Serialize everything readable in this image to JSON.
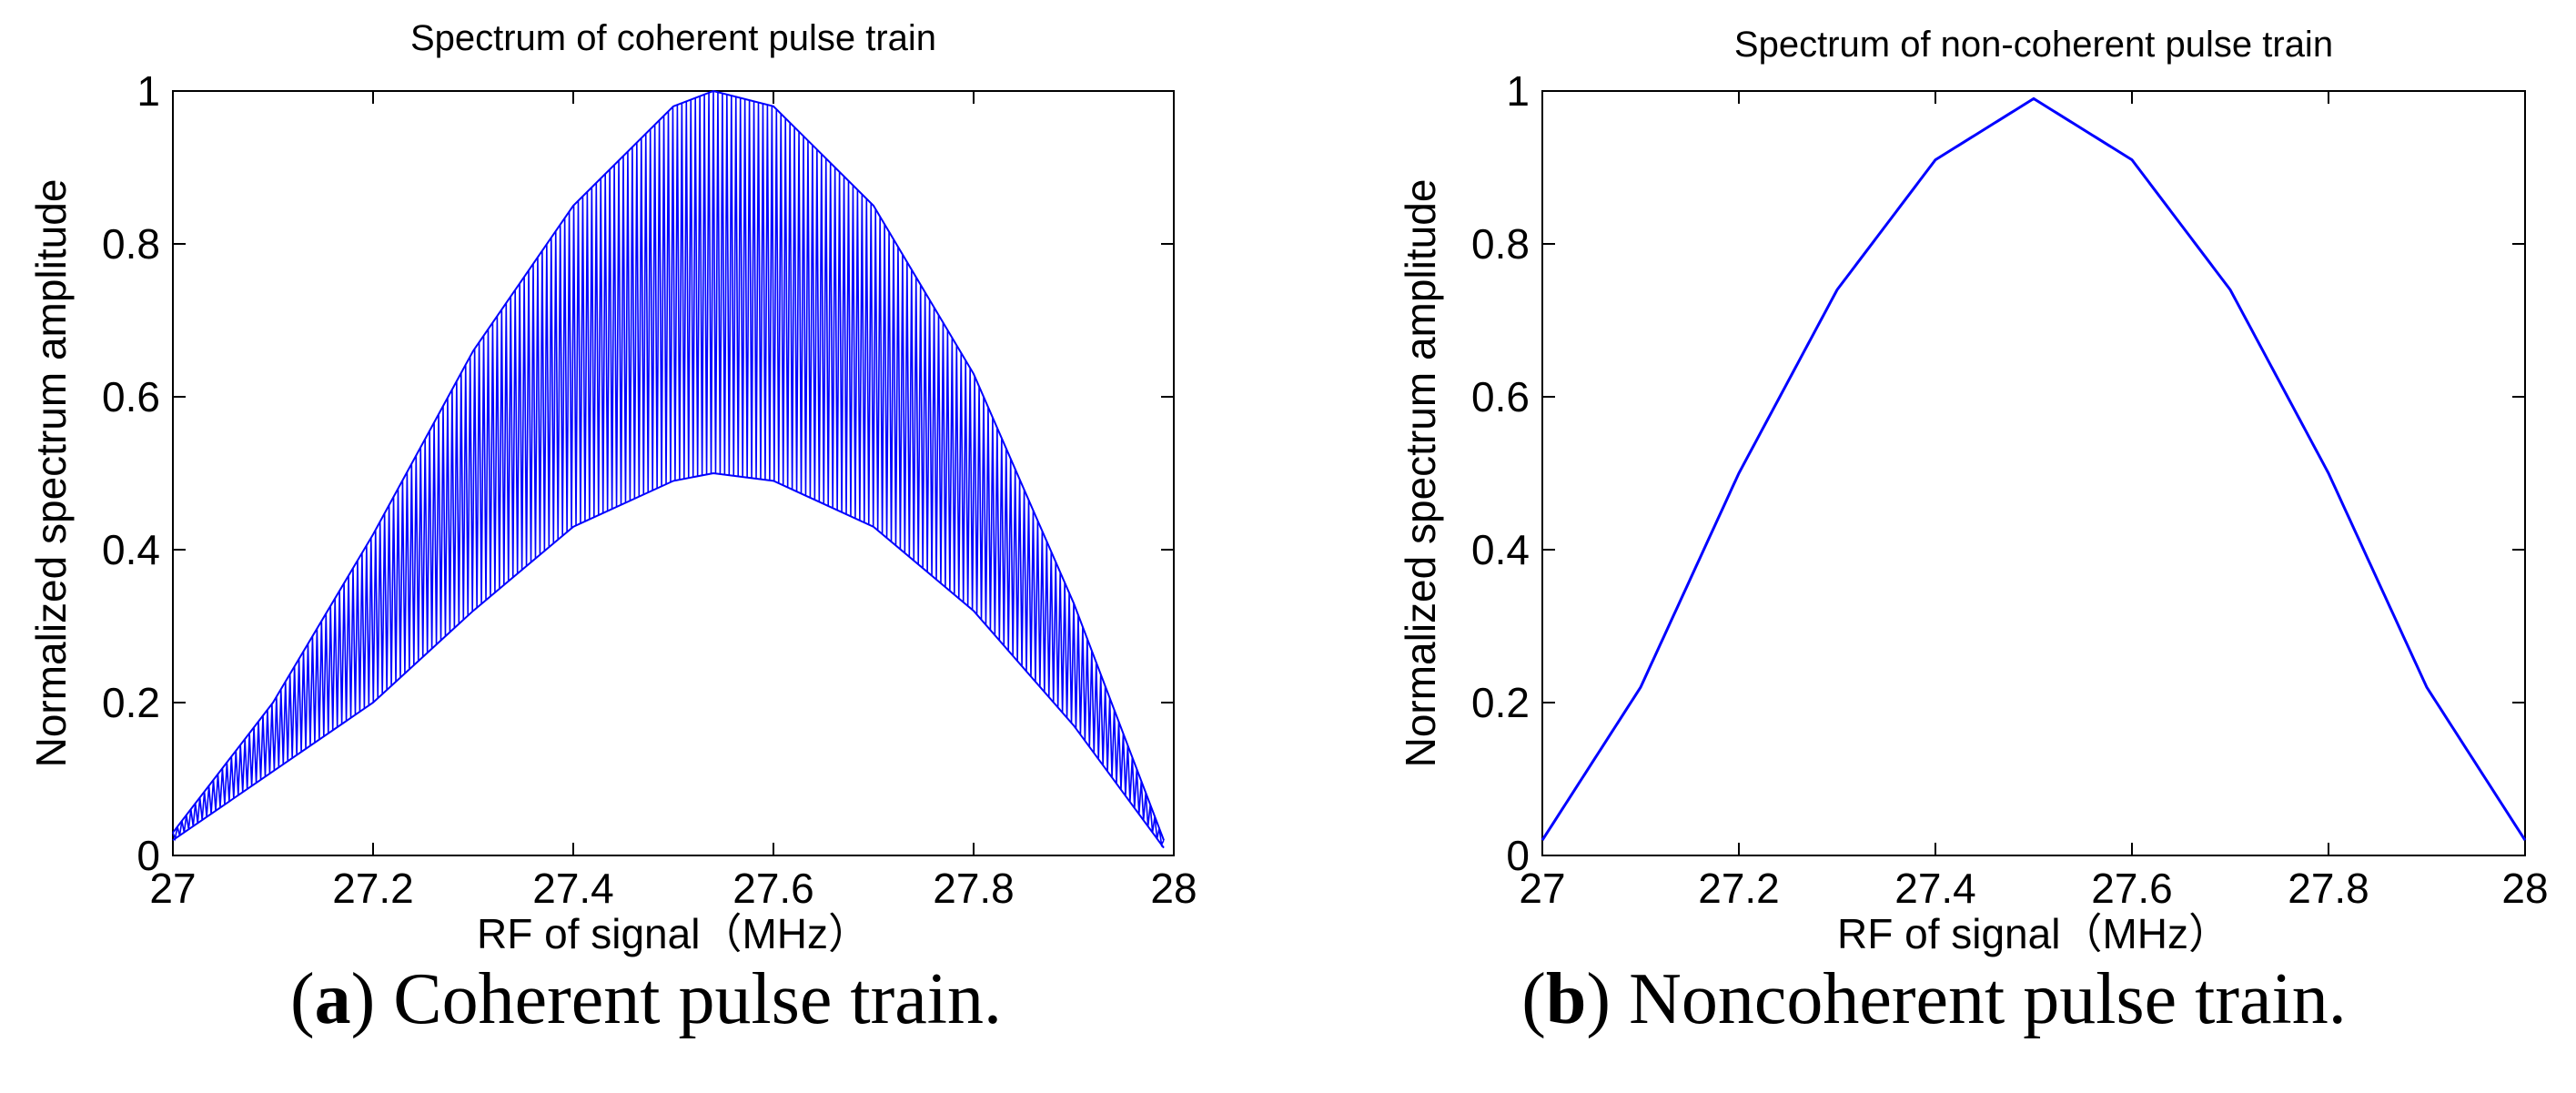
{
  "figure": {
    "captions": [
      {
        "letter": "a",
        "text": "Coherent pulse train."
      },
      {
        "letter": "b",
        "text": "Noncoherent pulse train."
      }
    ]
  },
  "chart_data": [
    {
      "type": "line",
      "title": "Spectrum of coherent pulse train",
      "xlabel": "RF of signal（MHz）",
      "ylabel": "Normalized spectrum amplitude",
      "xlim": [
        27,
        28
      ],
      "ylim": [
        0,
        1
      ],
      "xticks": [
        27,
        27.2,
        27.4,
        27.6,
        27.8,
        28
      ],
      "xtick_labels": [
        "27",
        "27.2",
        "27.4",
        "27.6",
        "27.8",
        "28"
      ],
      "yticks": [
        0,
        0.2,
        0.4,
        0.6,
        0.8,
        1
      ],
      "ytick_labels": [
        "0",
        "0.2",
        "0.4",
        "0.6",
        "0.8",
        "1"
      ],
      "color": "#0000ff",
      "series": [
        {
          "name": "upper envelope",
          "x": [
            27.0,
            27.1,
            27.2,
            27.3,
            27.4,
            27.5,
            27.54,
            27.6,
            27.7,
            27.8,
            27.9,
            27.99
          ],
          "values": [
            0.03,
            0.2,
            0.42,
            0.66,
            0.85,
            0.98,
            1.0,
            0.98,
            0.85,
            0.63,
            0.33,
            0.02
          ]
        },
        {
          "name": "lower envelope",
          "x": [
            27.0,
            27.1,
            27.2,
            27.3,
            27.4,
            27.5,
            27.54,
            27.6,
            27.7,
            27.8,
            27.9,
            27.99
          ],
          "values": [
            0.02,
            0.11,
            0.2,
            0.32,
            0.43,
            0.49,
            0.5,
            0.49,
            0.43,
            0.32,
            0.17,
            0.01
          ]
        }
      ]
    },
    {
      "type": "line",
      "title": "Spectrum of non-coherent pulse train",
      "xlabel": "RF of signal（MHz）",
      "ylabel": "Normalized spectrum amplitude",
      "xlim": [
        27,
        28
      ],
      "ylim": [
        0,
        1
      ],
      "xticks": [
        27,
        27.2,
        27.4,
        27.6,
        27.8,
        28
      ],
      "xtick_labels": [
        "27",
        "27.2",
        "27.4",
        "27.6",
        "27.8",
        "28"
      ],
      "yticks": [
        0,
        0.2,
        0.4,
        0.6,
        0.8,
        1
      ],
      "ytick_labels": [
        "0",
        "0.2",
        "0.4",
        "0.6",
        "0.8",
        "1"
      ],
      "color": "#0000ff",
      "series": [
        {
          "name": "spectrum",
          "x": [
            27.0,
            27.1,
            27.2,
            27.3,
            27.4,
            27.5,
            27.6,
            27.7,
            27.8,
            27.9,
            28.0
          ],
          "values": [
            0.02,
            0.22,
            0.5,
            0.74,
            0.91,
            0.99,
            0.91,
            0.74,
            0.5,
            0.22,
            0.02
          ]
        }
      ]
    }
  ]
}
